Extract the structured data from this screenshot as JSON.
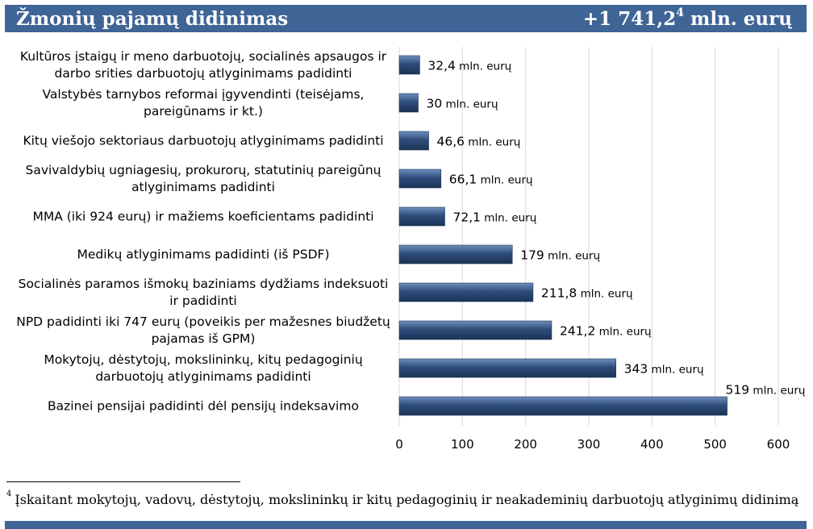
{
  "header": {
    "title": "Žmonių pajamų didinimas",
    "total_value": "+1 741,2",
    "total_sup": "4",
    "total_unit": " mln. eurų"
  },
  "chart_data": {
    "type": "bar",
    "orientation": "horizontal",
    "categories": [
      [
        "Kultūros įstaigų ir meno darbuotojų, socialinės apsaugos ir",
        "darbo srities darbuotojų atlyginimams padidinti"
      ],
      [
        "Valstybės tarnybos reformai įgyvendinti (teisėjams,",
        "pareigūnams ir kt.)"
      ],
      [
        "Kitų viešojo sektoriaus darbuotojų atlyginimams padidinti"
      ],
      [
        "Savivaldybių ugniagesių, prokurorų, statutinių pareigūnų",
        "atlyginimams padidinti"
      ],
      [
        "MMA (iki 924 eurų) ir mažiems koeficientams padidinti"
      ],
      [
        "Medikų atlyginimams padidinti (iš PSDF)"
      ],
      [
        "Socialinės paramos išmokų baziniams dydžiams indeksuoti",
        "ir padidinti"
      ],
      [
        "NPD padidinti iki 747 eurų (poveikis per mažesnes biudžetų",
        "pajamas iš GPM)"
      ],
      [
        "Mokytojų, dėstytojų, mokslininkų, kitų pedagoginių",
        "darbuotojų atlyginimams padidinti"
      ],
      [
        "Bazinei pensijai padidinti dėl pensijų indeksavimo"
      ]
    ],
    "values": [
      32.4,
      30,
      46.6,
      66.1,
      72.1,
      179,
      211.8,
      241.2,
      343,
      519
    ],
    "value_numbers": [
      "32,4",
      "30",
      "46,6",
      "66,1",
      "72,1",
      "179",
      "211,8",
      "241,2",
      "343",
      "519"
    ],
    "value_unit": " mln. eurų",
    "x_ticks": [
      "0",
      "100",
      "200",
      "300",
      "400",
      "500",
      "600"
    ],
    "xlim": [
      0,
      600
    ],
    "grid": true,
    "bar_color": "#2f4d7a"
  },
  "footnote": {
    "marker": "4",
    "text": "Įskaitant mokytojų, vadovų, dėstytojų, mokslininkų ir kitų pedagoginių ir neakademinių darbuotojų atlyginimų didinimą"
  }
}
